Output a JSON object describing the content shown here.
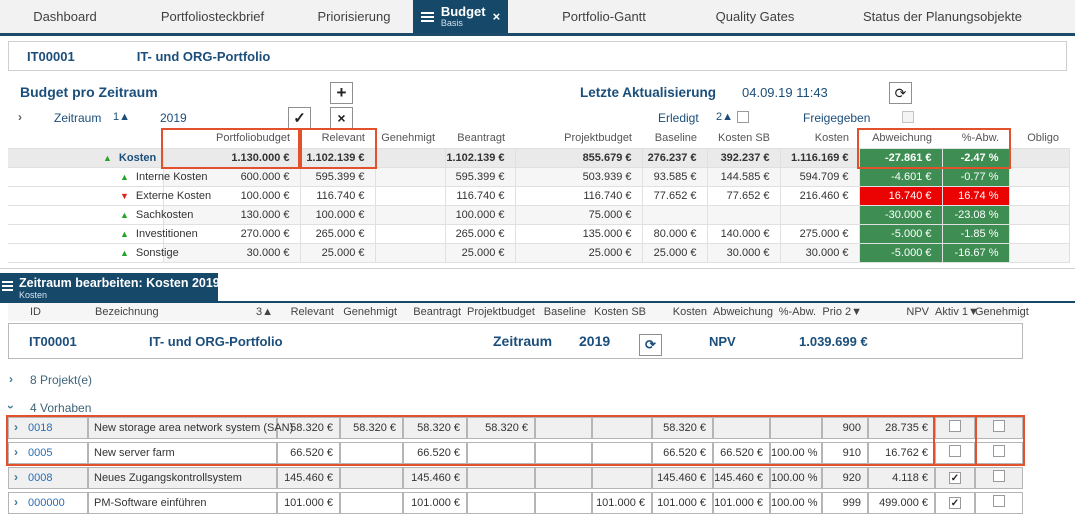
{
  "icons": {
    "close": "×",
    "plus": "+",
    "check": "✓",
    "cancel": "×",
    "refresh": "⟳",
    "chevron": "›",
    "tri_up": "▲",
    "tri_down": "▼",
    "checkbox_checked": "✓"
  },
  "colors": {
    "navy": "#16486a",
    "heading_blue": "#1b4e7a",
    "highlight_orange": "#e2502c",
    "positive_green": "#3e8e53",
    "negative_red": "#eb0202",
    "link_blue": "#2a6db4"
  },
  "nav": {
    "tabs": [
      {
        "label": "Dashboard"
      },
      {
        "label": "Portfoliosteckbrief"
      },
      {
        "label": "Priorisierung"
      },
      {
        "label": "Budget",
        "sublabel": "Basis",
        "active": true
      },
      {
        "label": "Portfolio-Gantt"
      },
      {
        "label": "Quality Gates"
      },
      {
        "label": "Status der Planungsobjekte"
      }
    ]
  },
  "portfolio_header": {
    "id": "IT00001",
    "name": "IT- und ORG-Portfolio"
  },
  "budget_section": {
    "title": "Budget pro Zeitraum",
    "last_update_label": "Letzte Aktualisierung",
    "last_update_value": "04.09.19 11:43",
    "zeitraum_label": "Zeitraum",
    "zeitraum_sort": "1▲",
    "zeitraum_value": "2019",
    "erledigt_label": "Erledigt",
    "erledigt_sort": "2▲",
    "erledigt_checked": false,
    "freigegeben_label": "Freigegeben",
    "freigegeben_checked": false,
    "table": {
      "columns": [
        "Portfoliobudget",
        "Relevant",
        "Genehmigt",
        "Beantragt",
        "Projektbudget",
        "Baseline",
        "Kosten SB",
        "Kosten",
        "Abweichung",
        "%-Abw.",
        "Obligo"
      ],
      "highlight_col_groups": [
        [
          0
        ],
        [
          1
        ],
        [
          8,
          9
        ]
      ],
      "rows": [
        {
          "name": "Kosten",
          "trend": "up",
          "level": 0,
          "dev": "green",
          "values": [
            "1.130.000 €",
            "1.102.139 €",
            "",
            "1.102.139 €",
            "855.679 €",
            "276.237 €",
            "392.237 €",
            "1.116.169 €",
            "-27.861 €",
            "-2.47 %",
            ""
          ]
        },
        {
          "name": "Interne Kosten",
          "trend": "up",
          "level": 1,
          "dev": "green",
          "values": [
            "600.000 €",
            "595.399 €",
            "",
            "595.399 €",
            "503.939 €",
            "93.585 €",
            "144.585 €",
            "594.709 €",
            "-4.601 €",
            "-0.77 %",
            ""
          ]
        },
        {
          "name": "Externe Kosten",
          "trend": "down",
          "level": 1,
          "dev": "red",
          "values": [
            "100.000 €",
            "116.740 €",
            "",
            "116.740 €",
            "116.740 €",
            "77.652 €",
            "77.652 €",
            "216.460 €",
            "16.740 €",
            "16.74 %",
            ""
          ]
        },
        {
          "name": "Sachkosten",
          "trend": "up",
          "level": 1,
          "dev": "green",
          "values": [
            "130.000 €",
            "100.000 €",
            "",
            "100.000 €",
            "75.000 €",
            "",
            "",
            "",
            "-30.000 €",
            "-23.08 %",
            ""
          ]
        },
        {
          "name": "Investitionen",
          "trend": "up",
          "level": 1,
          "dev": "green",
          "values": [
            "270.000 €",
            "265.000 €",
            "",
            "265.000 €",
            "135.000 €",
            "80.000 €",
            "140.000 €",
            "275.000 €",
            "-5.000 €",
            "-1.85 %",
            ""
          ]
        },
        {
          "name": "Sonstige",
          "trend": "up",
          "level": 1,
          "dev": "green",
          "values": [
            "30.000 €",
            "25.000 €",
            "",
            "25.000 €",
            "25.000 €",
            "25.000 €",
            "30.000 €",
            "30.000 €",
            "-5.000 €",
            "-16.67 %",
            ""
          ]
        }
      ]
    }
  },
  "edit_section": {
    "tab_title": "Zeitraum bearbeiten: Kosten 2019",
    "tab_subtitle": "Kosten",
    "columns": {
      "id": "ID",
      "bezeichnung": "Bezeichnung",
      "bez_sort": "3▲",
      "relevant": "Relevant",
      "genehmigt": "Genehmigt",
      "beantragt": "Beantragt",
      "projektbudget": "Projektbudget",
      "baseline": "Baseline",
      "kosten_sb": "Kosten SB",
      "kosten": "Kosten",
      "abweichung": "Abweichung",
      "pct_abw": "%-Abw.",
      "prio": "Prio",
      "prio_sort": "2▼",
      "npv": "NPV",
      "aktiv": "Aktiv",
      "aktiv_sort": "1▼",
      "genehmigt_cb": "Genehmigt"
    },
    "summary": {
      "id": "IT00001",
      "name": "IT- und ORG-Portfolio",
      "zeitraum_label": "Zeitraum",
      "zeitraum_value": "2019",
      "npv_label": "NPV",
      "npv_value": "1.039.699 €"
    },
    "groups": [
      {
        "label": "8 Projekt(e)",
        "expanded": false
      },
      {
        "label": "4 Vorhaben",
        "expanded": true
      }
    ],
    "highlight_rows": [
      0,
      1
    ],
    "highlight_checkbox_rows": [
      0,
      1
    ],
    "rows": [
      {
        "id": "0018",
        "name": "New storage area network system (SAN)",
        "values": [
          "58.320 €",
          "58.320 €",
          "58.320 €",
          "58.320 €",
          "",
          "",
          "58.320 €",
          "",
          "",
          "900",
          "28.735 €"
        ],
        "aktiv": false,
        "genehmigt": false
      },
      {
        "id": "0005",
        "name": "New server farm",
        "values": [
          "66.520 €",
          "",
          "66.520 €",
          "",
          "",
          "",
          "66.520 €",
          "66.520 €",
          "100.00 %",
          "910",
          "16.762 €"
        ],
        "aktiv": false,
        "genehmigt": false
      },
      {
        "id": "0008",
        "name": "Neues Zugangskontrollsystem",
        "values": [
          "145.460 €",
          "",
          "145.460 €",
          "",
          "",
          "",
          "145.460 €",
          "145.460 €",
          "100.00 %",
          "920",
          "4.118 €"
        ],
        "aktiv": true,
        "genehmigt": false
      },
      {
        "id": "000000",
        "name": "PM-Software einführen",
        "values": [
          "101.000 €",
          "",
          "101.000 €",
          "",
          "",
          "101.000 €",
          "101.000 €",
          "101.000 €",
          "100.00 %",
          "999",
          "499.000 €"
        ],
        "aktiv": true,
        "genehmigt": false
      }
    ]
  }
}
